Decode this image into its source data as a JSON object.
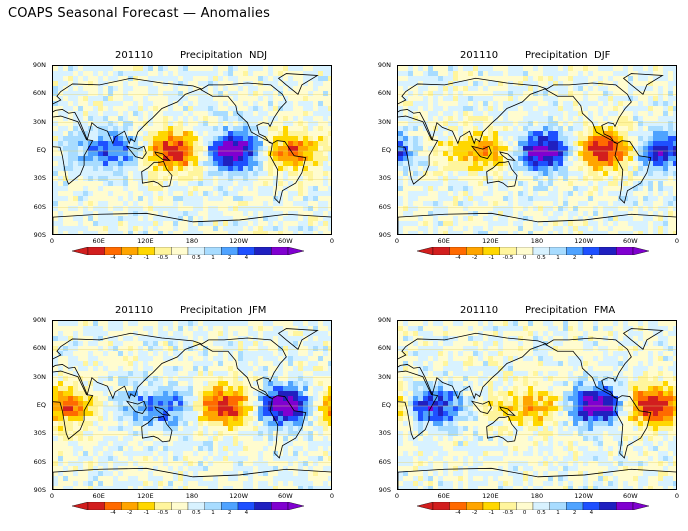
{
  "title": "COAPS Seasonal Forecast — Anomalies",
  "panels": [
    {
      "date": "201110",
      "variable": "Precipitation",
      "season": "NDJ"
    },
    {
      "date": "201110",
      "variable": "Precipitation",
      "season": "DJF"
    },
    {
      "date": "201110",
      "variable": "Precipitation",
      "season": "JFM"
    },
    {
      "date": "201110",
      "variable": "Precipitation",
      "season": "FMA"
    }
  ],
  "lat_labels": [
    "90N",
    "60N",
    "30N",
    "EQ",
    "30S",
    "60S",
    "90S"
  ],
  "lon_labels": [
    "0",
    "60E",
    "120E",
    "180",
    "120W",
    "60W",
    "0"
  ],
  "colorbar": {
    "labels": [
      "-4",
      "-2",
      "-1",
      "-0.5",
      "0",
      "0.5",
      "1",
      "2",
      "4"
    ],
    "colors": [
      "#d21e1e",
      "#ff6a00",
      "#ffa500",
      "#ffd700",
      "#fff59d",
      "#fffccf",
      "#d8f2ff",
      "#a8dcff",
      "#4fa3ff",
      "#1e50ff",
      "#2020c0",
      "#8000d0"
    ]
  }
}
